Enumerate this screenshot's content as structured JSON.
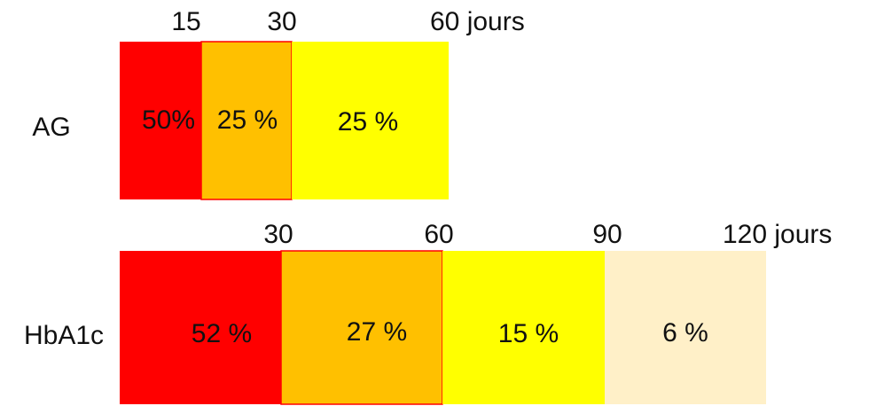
{
  "rows": [
    {
      "label": "AG",
      "ticks": [
        "15",
        "30",
        "60 jours"
      ],
      "segments": [
        "50%",
        "25 %",
        "25 %"
      ]
    },
    {
      "label": "HbA1c",
      "ticks": [
        "30",
        "60",
        "90",
        "120 jours"
      ],
      "segments": [
        "52 %",
        "27 %",
        "15 %",
        "6 %"
      ]
    }
  ]
}
